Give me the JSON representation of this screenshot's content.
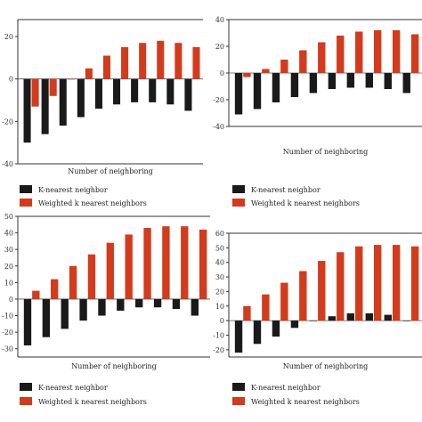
{
  "colors": {
    "knn": "#1a1a1a",
    "wknn": "#d43a1c"
  },
  "chart_data": [
    {
      "type": "bar",
      "xlabel": "Number of neighboring",
      "ylim": [
        -40,
        28
      ],
      "yticks": [
        20,
        0,
        -20,
        -40
      ],
      "tick_labels": [
        "20",
        "0",
        "-20",
        "-40"
      ],
      "legend": [
        "K-nearest neighbor",
        "Weighted k nearest neighbors"
      ],
      "series": [
        {
          "name": "K-nearest neighbor",
          "values": [
            -30,
            -26,
            -22,
            -18,
            -14,
            -12,
            -11,
            -11,
            -12,
            -15
          ]
        },
        {
          "name": "Weighted k nearest neighbors",
          "values": [
            -13,
            -8,
            0,
            5,
            11,
            15,
            17,
            18,
            17,
            15
          ]
        }
      ]
    },
    {
      "type": "bar",
      "xlabel": "Number of neighboring",
      "ylim": [
        -40,
        40
      ],
      "yticks": [
        40,
        20,
        0,
        -20,
        -40
      ],
      "tick_labels": [
        "40",
        "20",
        "0",
        "-20",
        "-40"
      ],
      "legend": [
        "K-nearest neighbor",
        "Weighted k nearest neighbors"
      ],
      "series": [
        {
          "name": "K-nearest neighbor",
          "values": [
            -31,
            -27,
            -22,
            -18,
            -15,
            -12,
            -11,
            -11,
            -12,
            -15
          ]
        },
        {
          "name": "Weighted k nearest neighbors",
          "values": [
            -3,
            3,
            10,
            17,
            23,
            28,
            31,
            32,
            32,
            29
          ]
        }
      ]
    },
    {
      "type": "bar",
      "xlabel": "Number of neighboring",
      "ylim": [
        -35,
        50
      ],
      "yticks": [
        50,
        40,
        30,
        20,
        10,
        0,
        -10,
        -20,
        -30
      ],
      "tick_labels": [
        "50",
        "40",
        "30",
        "20",
        "10",
        "0",
        "-10",
        "-20",
        "-30"
      ],
      "legend": [
        "K-nearest neighbor",
        "Weighted k nearest neighbors"
      ],
      "series": [
        {
          "name": "K-nearest neighbor",
          "values": [
            -28,
            -23,
            -18,
            -13,
            -10,
            -7,
            -5,
            -5,
            -6,
            -10
          ]
        },
        {
          "name": "Weighted k nearest neighbors",
          "values": [
            5,
            12,
            20,
            27,
            34,
            39,
            43,
            44,
            44,
            42
          ]
        }
      ]
    },
    {
      "type": "bar",
      "xlabel": "Number of neighboring",
      "ylim": [
        -25,
        60
      ],
      "yticks": [
        60,
        50,
        40,
        30,
        20,
        10,
        0,
        -10,
        -20
      ],
      "tick_labels": [
        "60",
        "50",
        "40",
        "30",
        "20",
        "10",
        "0",
        "-10",
        "-20"
      ],
      "legend": [
        "K-nearest neighbor",
        "Weighted k nearest neighbors"
      ],
      "series": [
        {
          "name": "K-nearest neighbor",
          "values": [
            -22,
            -16,
            -11,
            -5,
            0,
            3,
            5,
            5,
            4,
            0
          ]
        },
        {
          "name": "Weighted k nearest neighbors",
          "values": [
            10,
            18,
            26,
            34,
            41,
            47,
            51,
            52,
            52,
            51
          ]
        }
      ]
    }
  ]
}
